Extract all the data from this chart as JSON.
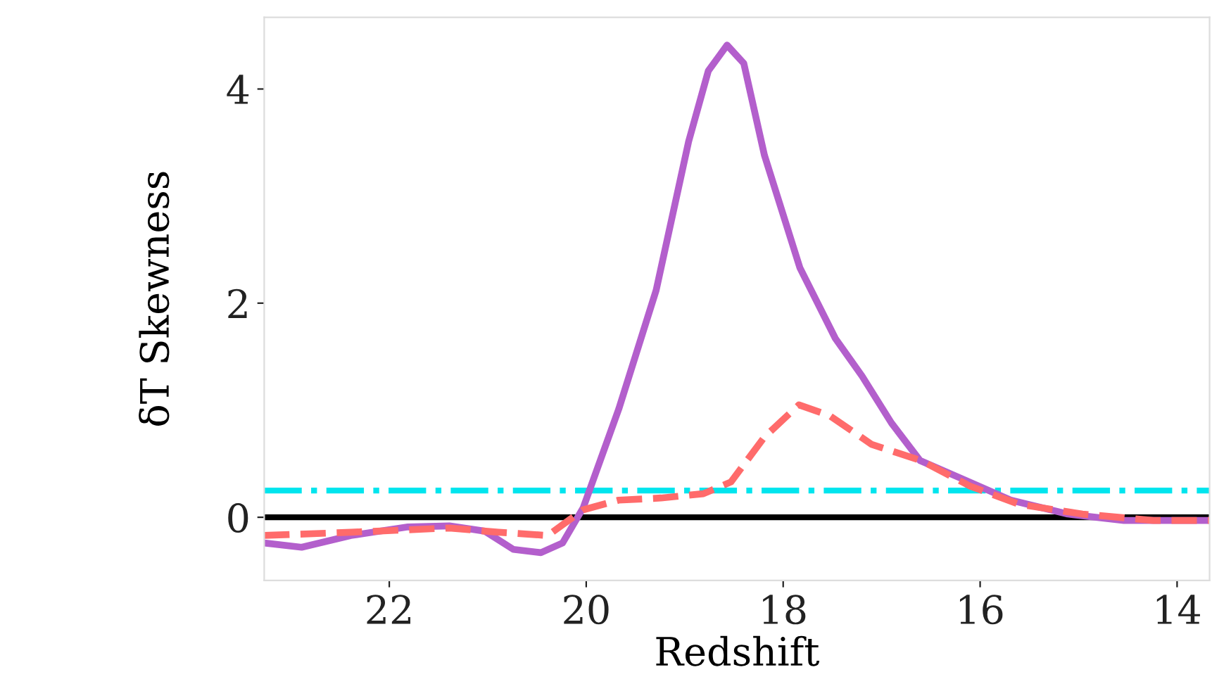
{
  "chart_data": {
    "type": "line",
    "xlabel": "Redshift",
    "ylabel": "δT Skewness",
    "xlim": [
      23.27,
      13.67
    ],
    "ylim": [
      -0.59,
      4.67
    ],
    "xticks": [
      22,
      20,
      18,
      16,
      14
    ],
    "yticks": [
      0,
      2,
      4
    ],
    "grid": false,
    "series": [
      {
        "color": "#b35fcc",
        "line_style": "solid",
        "x": [
          23.27,
          22.89,
          22.39,
          21.81,
          21.39,
          21.03,
          20.74,
          20.46,
          20.24,
          20.03,
          19.67,
          19.29,
          18.96,
          18.76,
          18.57,
          18.4,
          18.19,
          17.83,
          17.47,
          17.2,
          16.9,
          16.61,
          16.11,
          15.69,
          15.11,
          14.54,
          13.67
        ],
        "values": [
          -0.24,
          -0.28,
          -0.17,
          -0.09,
          -0.08,
          -0.13,
          -0.3,
          -0.33,
          -0.24,
          0.09,
          1.01,
          2.12,
          3.51,
          4.17,
          4.41,
          4.24,
          3.38,
          2.33,
          1.67,
          1.32,
          0.88,
          0.53,
          0.33,
          0.16,
          0.03,
          -0.03,
          -0.03
        ]
      },
      {
        "color": "#ff6b6b",
        "line_style": "dashed",
        "x": [
          23.27,
          22.39,
          21.39,
          20.89,
          20.39,
          20.03,
          19.67,
          19.24,
          18.81,
          18.53,
          18.19,
          17.84,
          17.53,
          17.1,
          16.6,
          16.1,
          15.6,
          14.96,
          14.24,
          13.67
        ],
        "values": [
          -0.17,
          -0.14,
          -0.1,
          -0.14,
          -0.17,
          0.07,
          0.16,
          0.18,
          0.22,
          0.33,
          0.75,
          1.05,
          0.95,
          0.68,
          0.53,
          0.29,
          0.12,
          0.03,
          -0.03,
          -0.03
        ]
      }
    ],
    "ref_lines": [
      {
        "axis": "y",
        "value": 0,
        "color": "#000000",
        "line_style": "solid"
      },
      {
        "axis": "y",
        "value": 0.25,
        "color": "#00e5ee",
        "line_style": "dashdot"
      }
    ]
  }
}
